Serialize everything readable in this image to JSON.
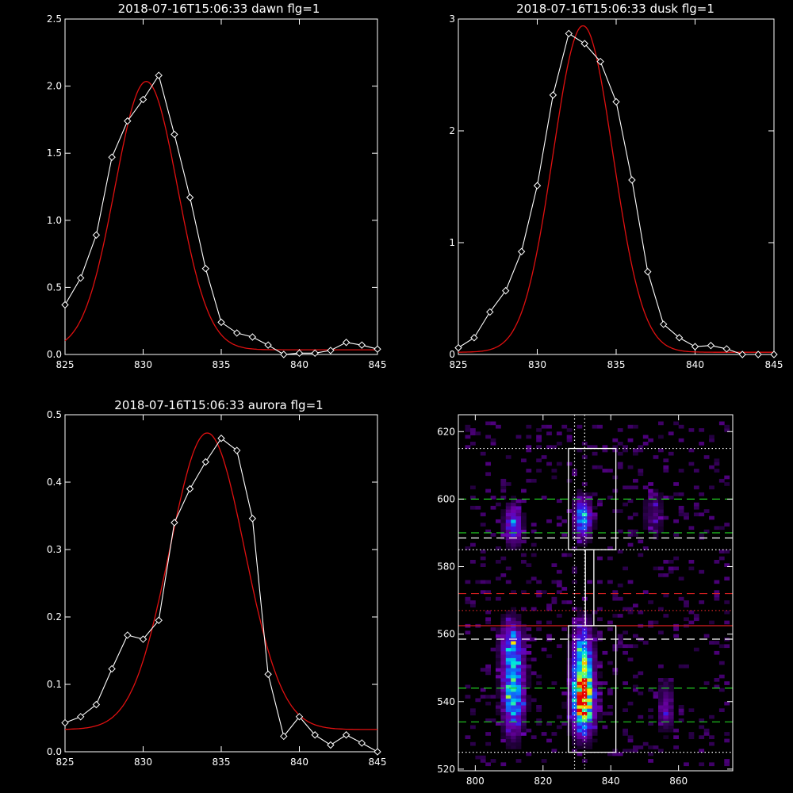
{
  "chart_data": [
    {
      "type": "line",
      "title": "2018-07-16T15:06:33 dawn flg=1",
      "xlim": [
        825,
        845
      ],
      "ylim": [
        0,
        2.5
      ],
      "xticks": [
        "825",
        "830",
        "835",
        "840",
        "845"
      ],
      "yticks": [
        "0.0",
        "0.5",
        "1.0",
        "1.5",
        "2.0",
        "2.5"
      ],
      "series": [
        {
          "kind": "data",
          "color": "#ffffff",
          "marker": "diamond",
          "x": [
            825,
            826,
            827,
            828,
            829,
            830,
            831,
            832,
            833,
            834,
            835,
            836,
            837,
            838,
            839,
            840,
            841,
            842,
            843,
            844,
            845
          ],
          "y": [
            0.37,
            0.57,
            0.89,
            1.47,
            1.74,
            1.9,
            2.08,
            1.64,
            1.17,
            0.64,
            0.24,
            0.16,
            0.13,
            0.07,
            0.0,
            0.01,
            0.01,
            0.03,
            0.09,
            0.07,
            0.04
          ]
        },
        {
          "kind": "fit",
          "color": "#e01010",
          "gauss": {
            "amp": 2.0,
            "center": 830.2,
            "sigma": 2.0,
            "offset": 0.035
          }
        }
      ]
    },
    {
      "type": "line",
      "title": "2018-07-16T15:06:33 dusk flg=1",
      "xlim": [
        825,
        845
      ],
      "ylim": [
        0,
        3
      ],
      "xticks": [
        "825",
        "830",
        "835",
        "840",
        "845"
      ],
      "yticks": [
        "0",
        "1",
        "2",
        "3"
      ],
      "series": [
        {
          "kind": "data",
          "color": "#ffffff",
          "marker": "diamond",
          "x": [
            825,
            826,
            827,
            828,
            829,
            830,
            831,
            832,
            833,
            834,
            835,
            836,
            837,
            838,
            839,
            840,
            841,
            842,
            843,
            844,
            845
          ],
          "y": [
            0.06,
            0.15,
            0.38,
            0.57,
            0.92,
            1.51,
            2.32,
            2.87,
            2.78,
            2.62,
            2.26,
            1.56,
            0.74,
            0.27,
            0.15,
            0.07,
            0.08,
            0.05,
            0.0,
            0.0,
            0.0
          ]
        },
        {
          "kind": "fit",
          "color": "#e01010",
          "gauss": {
            "amp": 2.92,
            "center": 832.9,
            "sigma": 1.9,
            "offset": 0.02
          }
        }
      ]
    },
    {
      "type": "line",
      "title": "2018-07-16T15:06:33 aurora flg=1",
      "xlim": [
        825,
        845
      ],
      "ylim": [
        0,
        0.5
      ],
      "xticks": [
        "825",
        "830",
        "835",
        "840",
        "845"
      ],
      "yticks": [
        "0.0",
        "0.1",
        "0.2",
        "0.3",
        "0.4",
        "0.5"
      ],
      "series": [
        {
          "kind": "data",
          "color": "#ffffff",
          "marker": "diamond",
          "x": [
            825,
            826,
            827,
            828,
            829,
            830,
            831,
            832,
            833,
            834,
            835,
            836,
            837,
            838,
            839,
            840,
            841,
            842,
            843,
            844,
            845
          ],
          "y": [
            0.043,
            0.052,
            0.07,
            0.123,
            0.173,
            0.167,
            0.195,
            0.34,
            0.39,
            0.43,
            0.465,
            0.447,
            0.346,
            0.115,
            0.023,
            0.052,
            0.025,
            0.01,
            0.025,
            0.013,
            0.0
          ]
        },
        {
          "kind": "fit",
          "color": "#e01010",
          "gauss": {
            "amp": 0.44,
            "center": 834.1,
            "sigma": 2.4,
            "offset": 0.033
          }
        }
      ]
    },
    {
      "type": "heatmap",
      "title": "",
      "xlim": [
        795,
        876
      ],
      "ylim": [
        519.5,
        625
      ],
      "xticks": [
        "800",
        "820",
        "840",
        "860"
      ],
      "yticks": [
        "520",
        "540",
        "560",
        "580",
        "600",
        "620"
      ],
      "blobs": [
        {
          "x": 810.5,
          "y": 542,
          "sx": 2.2,
          "sy": 8,
          "amp": 0.7
        },
        {
          "x": 810,
          "y": 557,
          "sx": 2.3,
          "sy": 5,
          "amp": 0.45
        },
        {
          "x": 810.5,
          "y": 592,
          "sx": 1.8,
          "sy": 4,
          "amp": 0.5
        },
        {
          "x": 831,
          "y": 539,
          "sx": 2.3,
          "sy": 6,
          "amp": 1.0
        },
        {
          "x": 831,
          "y": 552,
          "sx": 2.1,
          "sy": 7,
          "amp": 0.7
        },
        {
          "x": 831,
          "y": 594,
          "sx": 1.8,
          "sy": 4,
          "amp": 0.65
        },
        {
          "x": 855.5,
          "y": 538,
          "sx": 1.6,
          "sy": 5,
          "amp": 0.3
        },
        {
          "x": 852,
          "y": 595,
          "sx": 2.2,
          "sy": 5,
          "amp": 0.2
        }
      ],
      "vlines": [
        {
          "x": 829.3,
          "color": "#ffffff",
          "style": "dotted"
        },
        {
          "x": 832.3,
          "color": "#ffffff",
          "style": "dotted"
        }
      ],
      "hlines": [
        {
          "y": 615,
          "color": "#ffffff",
          "style": "dotted"
        },
        {
          "y": 600,
          "color": "#22cc22",
          "style": "dashed"
        },
        {
          "y": 590,
          "color": "#22cc22",
          "style": "dashed"
        },
        {
          "y": 588.5,
          "color": "#ffffff",
          "style": "dashed"
        },
        {
          "y": 585,
          "color": "#ffffff",
          "style": "dotted"
        },
        {
          "y": 572,
          "color": "#dd2020",
          "style": "dashed"
        },
        {
          "y": 567,
          "color": "#cc2222",
          "style": "dotted"
        },
        {
          "y": 562.5,
          "color": "#dd2020",
          "style": "solid"
        },
        {
          "y": 558.5,
          "color": "#ffffff",
          "style": "dashed"
        },
        {
          "y": 544,
          "color": "#22cc22",
          "style": "dashed"
        },
        {
          "y": 534,
          "color": "#22cc22",
          "style": "dashed"
        },
        {
          "y": 525,
          "color": "#ffffff",
          "style": "dotted"
        }
      ],
      "boxes": [
        {
          "x0": 827.5,
          "x1": 841.5,
          "y0": 585,
          "y1": 615
        },
        {
          "x0": 832.5,
          "x1": 835,
          "y0": 562.5,
          "y1": 585
        },
        {
          "x0": 827.5,
          "x1": 841.5,
          "y0": 525,
          "y1": 562.5
        }
      ]
    }
  ]
}
